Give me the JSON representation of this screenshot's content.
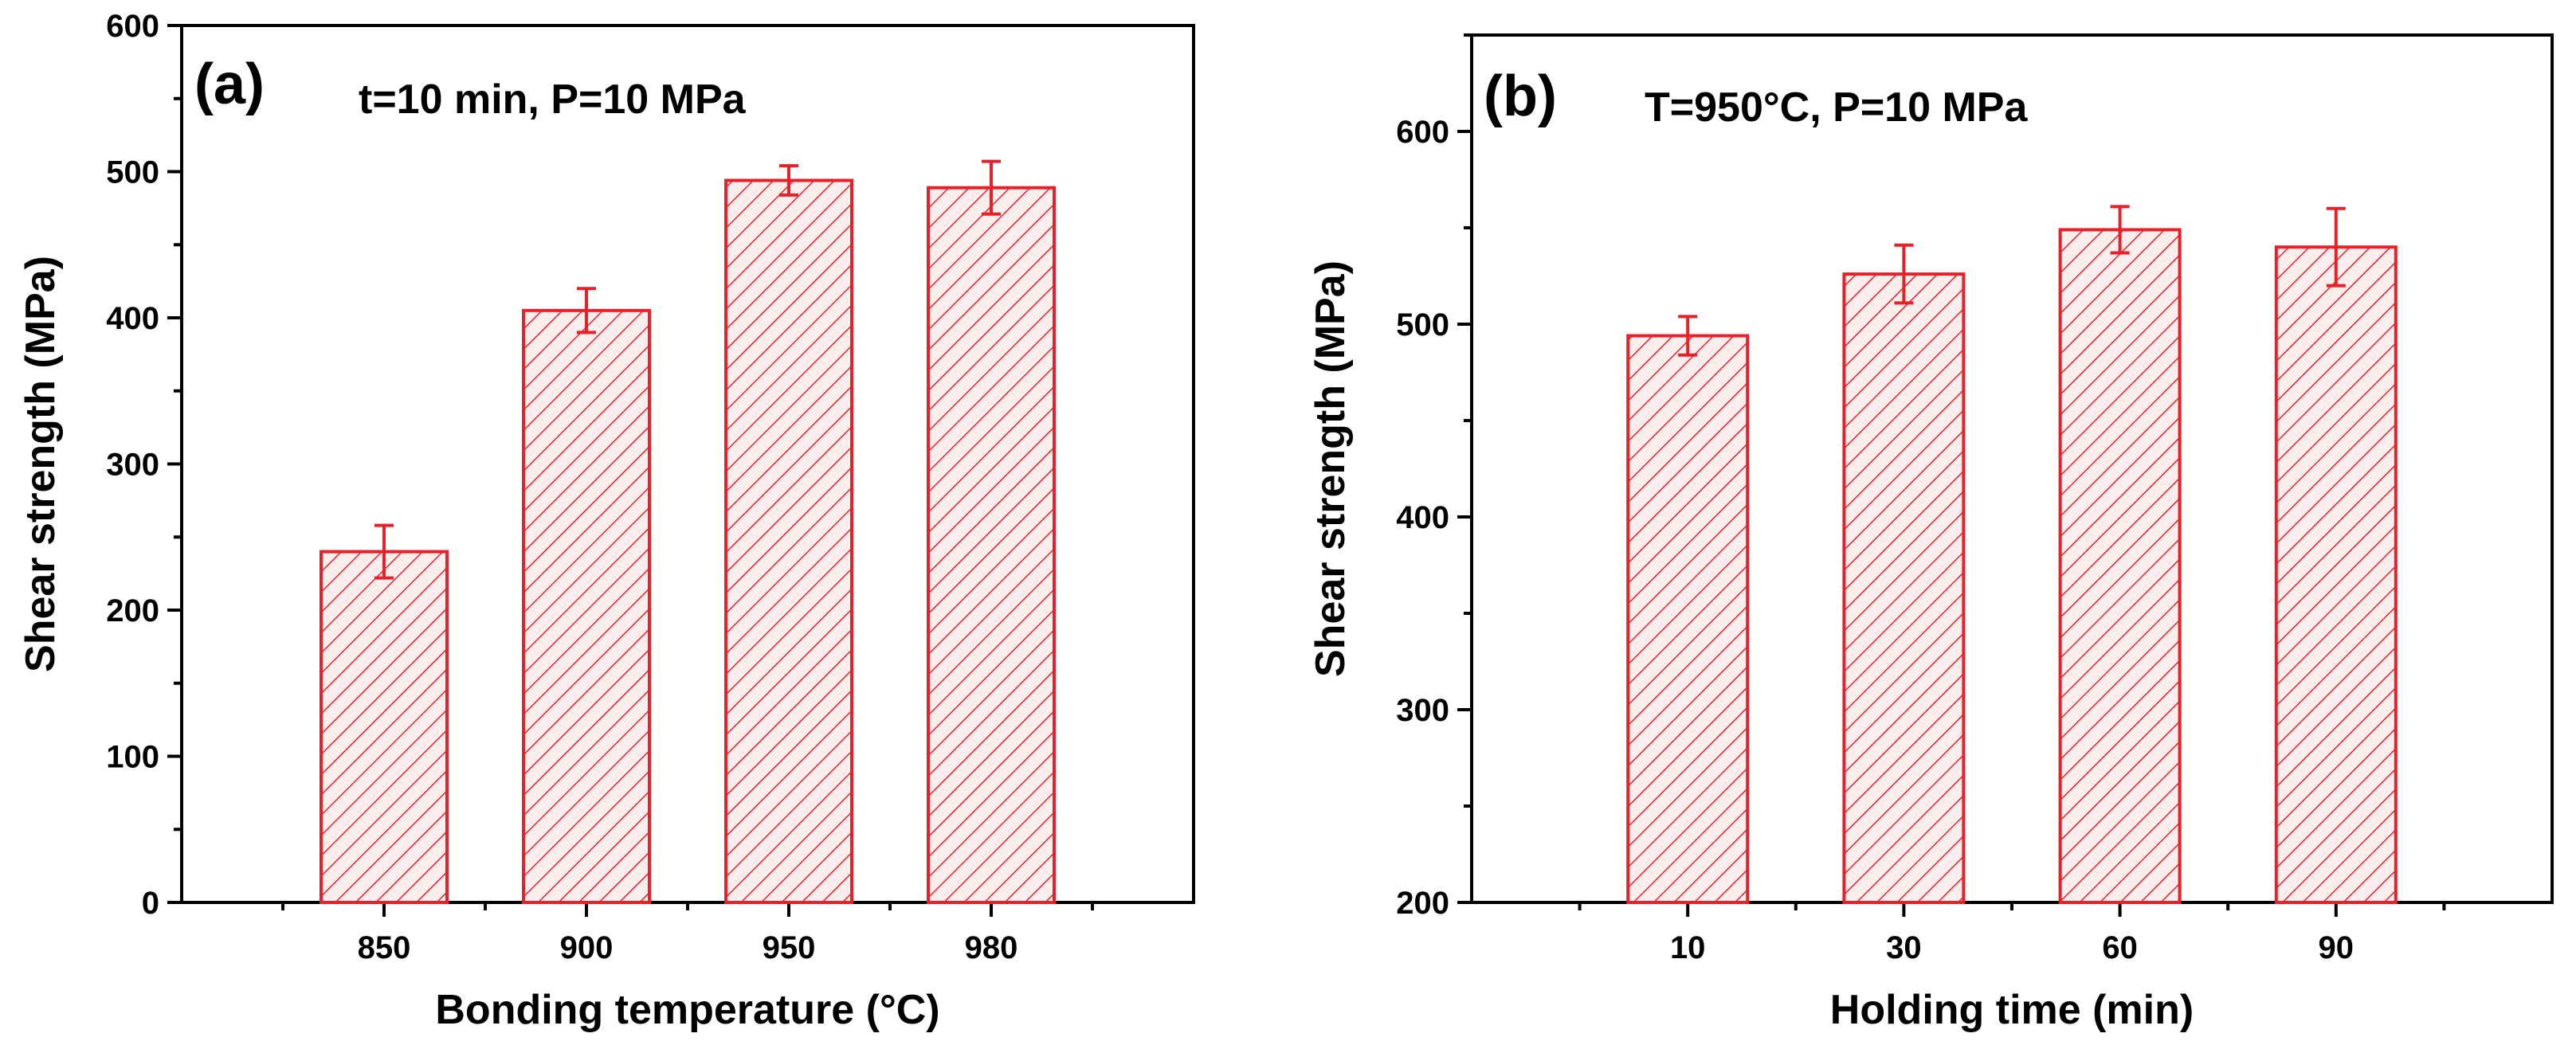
{
  "colors": {
    "bar": "#e8202a",
    "axis": "#000000",
    "hatch_bg": "#fdeeee"
  },
  "chart_data": [
    {
      "type": "bar",
      "panel_label": "(a)",
      "annotation": "t=10 min, P=10 MPa",
      "xlabel": "Bonding temperature (°C)",
      "ylabel": "Shear strength (MPa)",
      "categories": [
        "850",
        "900",
        "950",
        "980"
      ],
      "values": [
        240,
        405,
        494,
        489
      ],
      "errors": [
        18,
        15,
        10,
        18
      ],
      "ylim": [
        0,
        600
      ],
      "yticks": [
        "0",
        "100",
        "200",
        "300",
        "400",
        "500",
        "600"
      ],
      "grid": false
    },
    {
      "type": "bar",
      "panel_label": "(b)",
      "annotation": "T=950°C, P=10 MPa",
      "xlabel": "Holding time (min)",
      "ylabel": "Shear strength (MPa)",
      "categories": [
        "10",
        "30",
        "60",
        "90"
      ],
      "values": [
        494,
        526,
        549,
        540
      ],
      "errors": [
        10,
        15,
        12,
        20
      ],
      "ylim": [
        200,
        650
      ],
      "yticks": [
        "200",
        "300",
        "400",
        "500",
        "600"
      ],
      "grid": false
    }
  ]
}
